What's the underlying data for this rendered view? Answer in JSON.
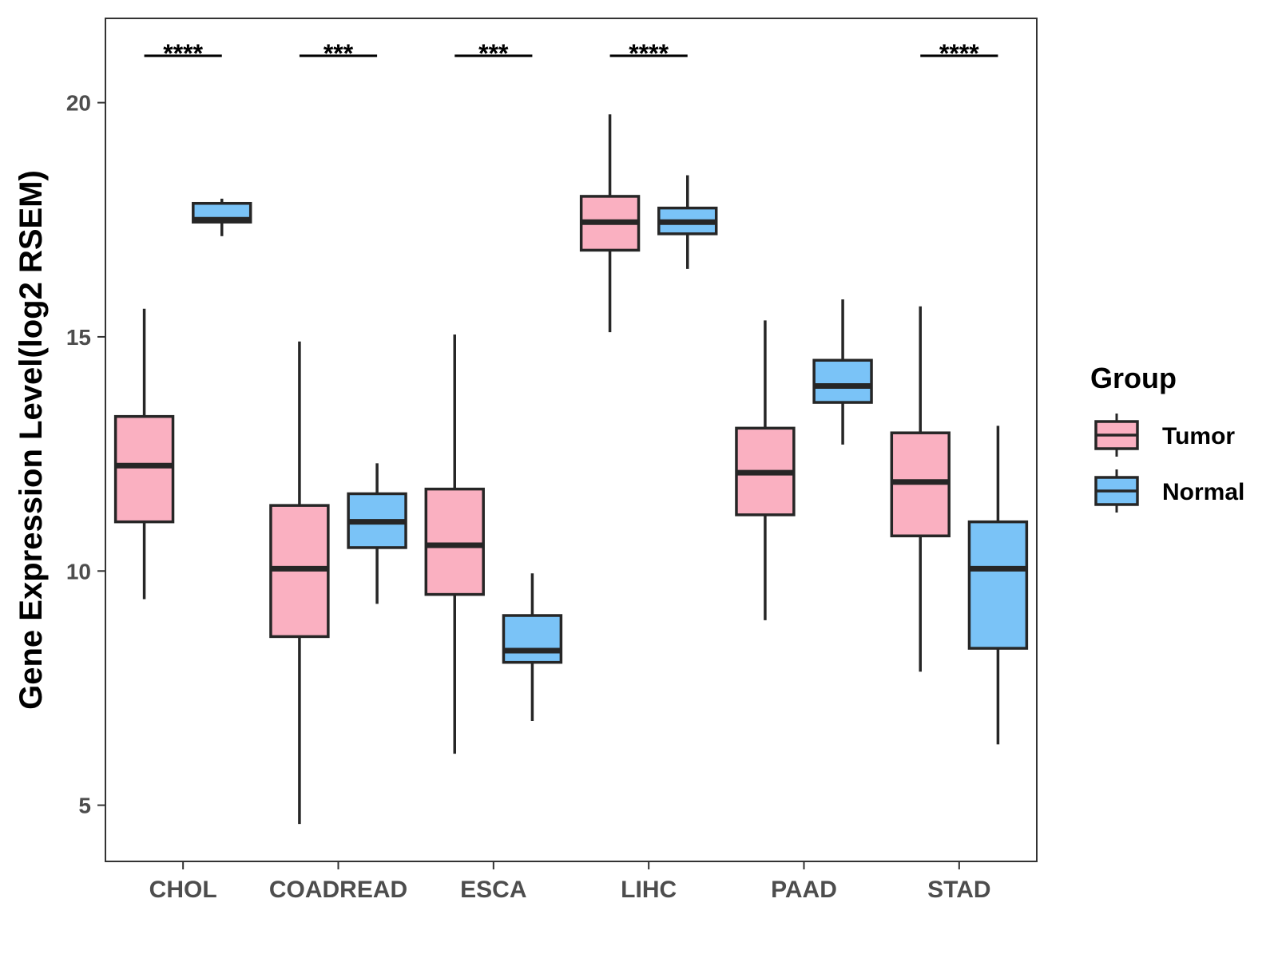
{
  "chart_data": {
    "type": "boxplot",
    "title": "",
    "xlabel": "",
    "ylabel": "Gene Expression Level(log2 RSEM)",
    "ylim": [
      3.8,
      21.8
    ],
    "yticks": [
      5,
      10,
      15,
      20
    ],
    "categories": [
      "CHOL",
      "COADREAD",
      "ESCA",
      "LIHC",
      "PAAD",
      "STAD"
    ],
    "legend": {
      "title": "Group",
      "position": "right",
      "entries": [
        {
          "name": "Tumor",
          "color": "#FAB0C1"
        },
        {
          "name": "Normal",
          "color": "#7AC3F7"
        }
      ]
    },
    "series": [
      {
        "name": "Tumor",
        "color": "#FAB0C1",
        "boxes": [
          {
            "category": "CHOL",
            "min": 9.4,
            "q1": 11.05,
            "median": 12.25,
            "q3": 13.3,
            "max": 15.6
          },
          {
            "category": "COADREAD",
            "min": 4.6,
            "q1": 8.6,
            "median": 10.05,
            "q3": 11.4,
            "max": 14.9
          },
          {
            "category": "ESCA",
            "min": 6.1,
            "q1": 9.5,
            "median": 10.55,
            "q3": 11.75,
            "max": 15.05
          },
          {
            "category": "LIHC",
            "min": 15.1,
            "q1": 16.85,
            "median": 17.45,
            "q3": 18.0,
            "max": 19.75
          },
          {
            "category": "PAAD",
            "min": 8.95,
            "q1": 11.2,
            "median": 12.1,
            "q3": 13.05,
            "max": 15.35
          },
          {
            "category": "STAD",
            "min": 7.85,
            "q1": 10.75,
            "median": 11.9,
            "q3": 12.95,
            "max": 15.65
          }
        ]
      },
      {
        "name": "Normal",
        "color": "#7AC3F7",
        "boxes": [
          {
            "category": "CHOL",
            "min": 17.15,
            "q1": 17.45,
            "median": 17.5,
            "q3": 17.85,
            "max": 17.95
          },
          {
            "category": "COADREAD",
            "min": 9.3,
            "q1": 10.5,
            "median": 11.05,
            "q3": 11.65,
            "max": 12.3
          },
          {
            "category": "ESCA",
            "min": 6.8,
            "q1": 8.05,
            "median": 8.3,
            "q3": 9.05,
            "max": 9.95
          },
          {
            "category": "LIHC",
            "min": 16.45,
            "q1": 17.2,
            "median": 17.45,
            "q3": 17.75,
            "max": 18.45
          },
          {
            "category": "PAAD",
            "min": 12.7,
            "q1": 13.6,
            "median": 13.95,
            "q3": 14.5,
            "max": 15.8
          },
          {
            "category": "STAD",
            "min": 6.3,
            "q1": 8.35,
            "median": 10.05,
            "q3": 11.05,
            "max": 13.1
          }
        ]
      }
    ],
    "annotations": [
      {
        "category": "CHOL",
        "label": "****"
      },
      {
        "category": "COADREAD",
        "label": "***"
      },
      {
        "category": "ESCA",
        "label": "***"
      },
      {
        "category": "LIHC",
        "label": "****"
      },
      {
        "category": "PAAD",
        "label": ""
      },
      {
        "category": "STAD",
        "label": "****"
      }
    ],
    "significance_level": 21.0
  }
}
